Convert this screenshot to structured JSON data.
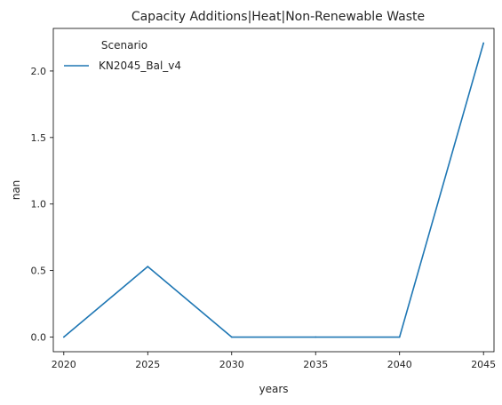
{
  "chart_data": {
    "type": "line",
    "title": "Capacity Additions|Heat|Non-Renewable Waste",
    "xlabel": "years",
    "ylabel": "nan",
    "x": [
      2020,
      2025,
      2030,
      2035,
      2040,
      2045
    ],
    "xticks": [
      2020,
      2025,
      2030,
      2035,
      2040,
      2045
    ],
    "yticks": [
      0.0,
      0.5,
      1.0,
      1.5,
      2.0
    ],
    "ytick_labels": [
      "0.0",
      "0.5",
      "1.0",
      "1.5",
      "2.0"
    ],
    "xlim": [
      2019.375,
      2045.625
    ],
    "ylim": [
      -0.11,
      2.32
    ],
    "grid": false,
    "legend": {
      "title": "Scenario",
      "placement": "top-left"
    },
    "series": [
      {
        "name": "KN2045_Bal_v4",
        "color": "#1f77b4",
        "values": [
          0.0,
          0.53,
          0.0,
          0.0,
          0.0,
          2.21
        ]
      }
    ]
  }
}
